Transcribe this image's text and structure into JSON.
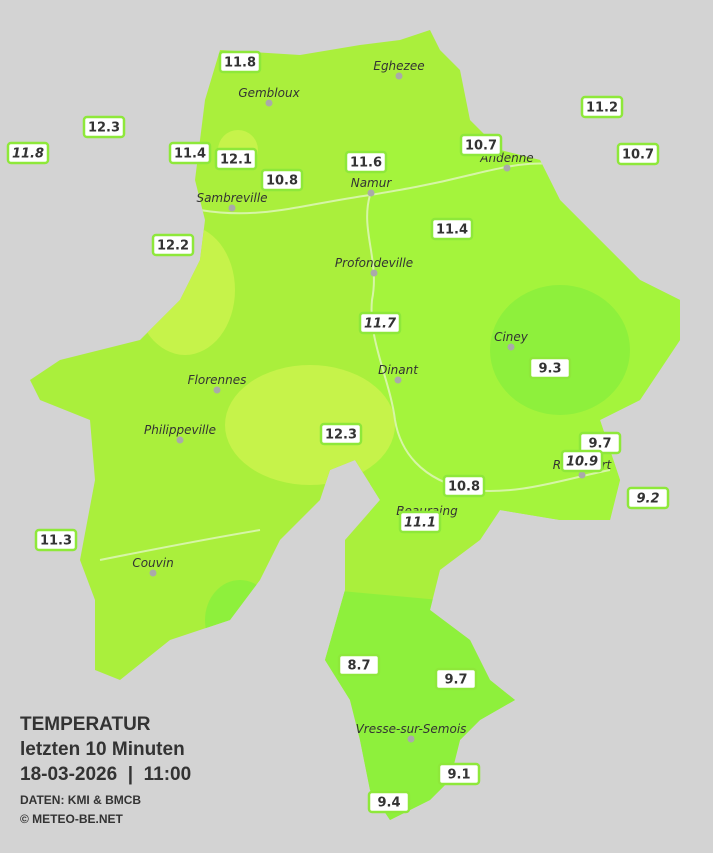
{
  "title": {
    "lines": [
      "TEMPERATUR",
      "letzten 10 Minuten",
      "18-03-2026  |  11:00"
    ]
  },
  "credits": [
    "DATEN: KMI & BMCB",
    "© METEO-BE.NET"
  ],
  "towns": [
    "Eghezee",
    "Gembloux",
    "Andenne",
    "Namur",
    "Sambreville",
    "Profondeville",
    "Ciney",
    "Dinant",
    "Florennes",
    "Philippeville",
    "Rochefort",
    "Beauraing",
    "Couvin",
    "Vresse-sur-Semois"
  ],
  "stations": [
    {
      "value": "11.8"
    },
    {
      "value": "12.3"
    },
    {
      "value": "11.8",
      "italic": true
    },
    {
      "value": "11.4"
    },
    {
      "value": "12.1"
    },
    {
      "value": "10.8"
    },
    {
      "value": "11.6"
    },
    {
      "value": "10.7"
    },
    {
      "value": "11.2"
    },
    {
      "value": "10.7"
    },
    {
      "value": "12.2"
    },
    {
      "value": "11.4"
    },
    {
      "value": "11.7",
      "italic": true
    },
    {
      "value": "9.3"
    },
    {
      "value": "12.3"
    },
    {
      "value": "9.7"
    },
    {
      "value": "10.9",
      "italic": true
    },
    {
      "value": "9.2",
      "italic": true
    },
    {
      "value": "10.8"
    },
    {
      "value": "11.1",
      "italic": true
    },
    {
      "value": "11.3"
    },
    {
      "value": "8.7"
    },
    {
      "value": "9.7"
    },
    {
      "value": "9.1"
    },
    {
      "value": "9.4"
    }
  ]
}
